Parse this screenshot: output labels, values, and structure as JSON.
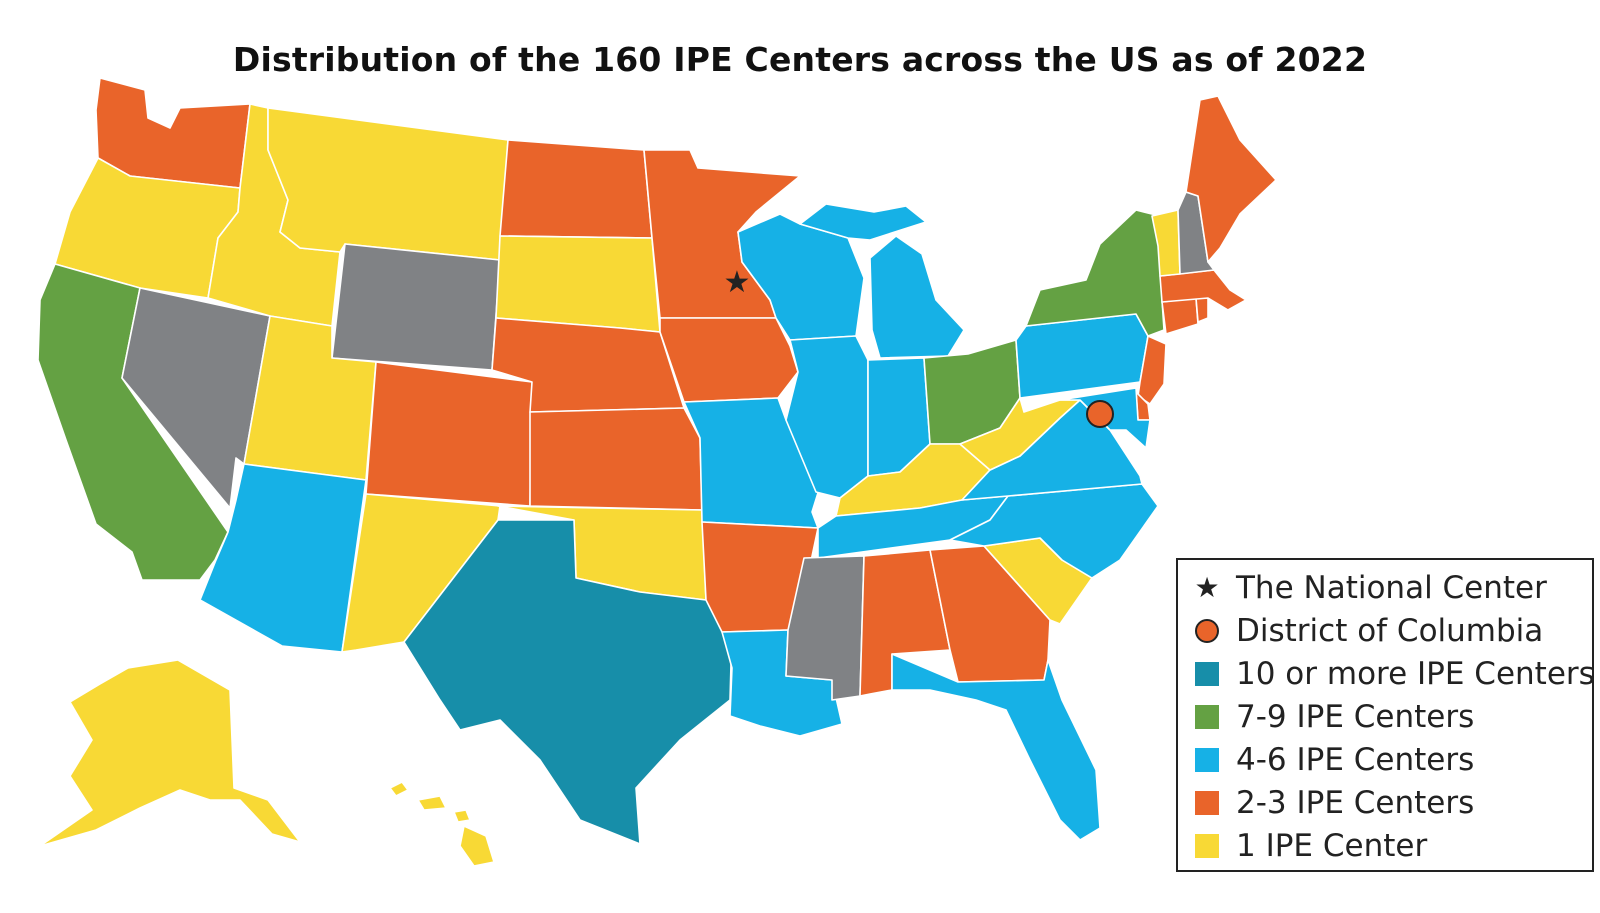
{
  "title": "Distribution of the 160 IPE Centers across the US as of 2022",
  "colors": {
    "ten_plus": "#178ea9",
    "seven_nine": "#64a143",
    "four_six": "#16b1e6",
    "two_three": "#e9642a",
    "one": "#f8d935",
    "none": "#808285",
    "marker_stroke": "#222222"
  },
  "legend": {
    "items": [
      {
        "label": "The National Center",
        "marker": "star-icon",
        "color": "#222222"
      },
      {
        "label": "District of Columbia",
        "marker": "circle-icon",
        "color": "#e9642a"
      },
      {
        "label": "10 or more IPE Centers",
        "marker": "square",
        "color": "#178ea9"
      },
      {
        "label": "7-9 IPE Centers",
        "marker": "square",
        "color": "#64a143"
      },
      {
        "label": "4-6 IPE Centers",
        "marker": "square",
        "color": "#16b1e6"
      },
      {
        "label": "2-3 IPE Centers",
        "marker": "square",
        "color": "#e9642a"
      },
      {
        "label": "1 IPE Center",
        "marker": "square",
        "color": "#f8d935"
      }
    ]
  },
  "state_categories": {
    "WA": "two_three",
    "OR": "one",
    "CA": "seven_nine",
    "NV": "none",
    "ID": "one",
    "MT": "one",
    "WY": "none",
    "UT": "one",
    "AZ": "four_six",
    "CO": "two_three",
    "NM": "one",
    "ND": "two_three",
    "SD": "one",
    "NE": "two_three",
    "KS": "two_three",
    "OK": "one",
    "TX": "ten_plus",
    "MN": "two_three",
    "IA": "two_three",
    "MO": "four_six",
    "AR": "two_three",
    "LA": "four_six",
    "WI": "four_six",
    "IL": "four_six",
    "MI": "four_six",
    "IN": "four_six",
    "OH": "seven_nine",
    "KY": "one",
    "TN": "four_six",
    "MS": "none",
    "AL": "two_three",
    "GA": "two_three",
    "FL": "four_six",
    "SC": "one",
    "NC": "four_six",
    "VA": "four_six",
    "WV": "one",
    "PA": "four_six",
    "NY": "seven_nine",
    "NJ": "two_three",
    "DE": "two_three",
    "MD": "four_six",
    "CT": "two_three",
    "RI": "two_three",
    "MA": "two_three",
    "VT": "one",
    "NH": "none",
    "ME": "two_three",
    "AK": "one",
    "HI": "one"
  },
  "markers": {
    "national_center_state": "MN",
    "dc_label": "District of Columbia"
  }
}
